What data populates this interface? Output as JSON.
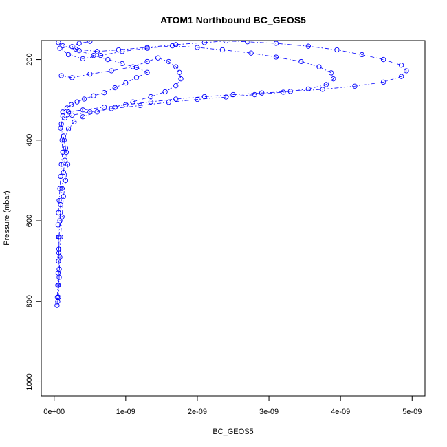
{
  "chart_data": {
    "type": "scatter",
    "title": "ATOM1 Northbound BC_GEOS5",
    "xlabel": "BC_GEOS5",
    "ylabel": "Pressure (mbar)",
    "xlim": [
      -1.8e-10,
      5.18e-09
    ],
    "ylim": [
      1035,
      153
    ],
    "y_reversed": true,
    "x_ticks": [
      0,
      1e-09,
      2e-09,
      3e-09,
      4e-09,
      5e-09
    ],
    "x_tick_labels": [
      "0e+00",
      "1e-09",
      "2e-09",
      "3e-09",
      "4e-09",
      "5e-09"
    ],
    "y_ticks": [
      200,
      400,
      600,
      800,
      1000
    ],
    "y_tick_labels": [
      "200",
      "400",
      "600",
      "800",
      "1000"
    ],
    "marker": "open-circle",
    "line_style": "dash-dot",
    "color": "#0000ff",
    "series": [
      {
        "points": [
          [
            4e-11,
            810
          ],
          [
            4.5e-11,
            790
          ],
          [
            5e-11,
            760
          ],
          [
            5.5e-11,
            730
          ],
          [
            6e-11,
            700
          ],
          [
            6.5e-11,
            670
          ],
          [
            6e-11,
            640
          ],
          [
            5.5e-11,
            610
          ],
          [
            6e-11,
            580
          ],
          [
            7e-11,
            550
          ],
          [
            8e-11,
            520
          ],
          [
            9e-11,
            490
          ],
          [
            1e-10,
            460
          ],
          [
            1.2e-10,
            430
          ],
          [
            1.1e-10,
            400
          ],
          [
            9e-11,
            370
          ],
          [
            1.2e-10,
            340
          ],
          [
            2e-10,
            330
          ],
          [
            4e-10,
            325
          ],
          [
            7e-10,
            318
          ],
          [
            1e-09,
            312
          ],
          [
            1.35e-09,
            305
          ],
          [
            1.7e-09,
            298
          ],
          [
            2.1e-09,
            292
          ],
          [
            2.5e-09,
            287
          ],
          [
            2.9e-09,
            283
          ],
          [
            3.3e-09,
            279
          ],
          [
            3.75e-09,
            274
          ],
          [
            4.2e-09,
            266
          ],
          [
            4.6e-09,
            256
          ],
          [
            4.85e-09,
            242
          ],
          [
            4.92e-09,
            228
          ],
          [
            4.85e-09,
            214
          ],
          [
            4.6e-09,
            200
          ],
          [
            4.3e-09,
            188
          ],
          [
            3.95e-09,
            176
          ],
          [
            3.55e-09,
            167
          ],
          [
            3.1e-09,
            160
          ],
          [
            2.7e-09,
            156
          ],
          [
            2.4e-09,
            154
          ],
          [
            2.1e-09,
            158
          ],
          [
            1.7e-09,
            163
          ],
          [
            1.3e-09,
            170
          ],
          [
            9e-10,
            176
          ],
          [
            6e-10,
            180
          ],
          [
            3e-10,
            174
          ],
          [
            1.2e-10,
            166
          ],
          [
            6e-11,
            158
          ]
        ]
      },
      {
        "points": [
          [
            5e-11,
            800
          ],
          [
            6e-11,
            760
          ],
          [
            7e-11,
            720
          ],
          [
            6.5e-11,
            680
          ],
          [
            7e-11,
            640
          ],
          [
            8e-11,
            600
          ],
          [
            9e-11,
            560
          ],
          [
            1.1e-10,
            520
          ],
          [
            1.3e-10,
            480
          ],
          [
            1.5e-10,
            450
          ],
          [
            1.6e-10,
            420
          ],
          [
            1.3e-10,
            390
          ],
          [
            1e-10,
            360
          ],
          [
            1.5e-10,
            345
          ],
          [
            2.5e-10,
            338
          ],
          [
            5e-10,
            330
          ],
          [
            8e-10,
            322
          ],
          [
            1.2e-09,
            314
          ],
          [
            1.6e-09,
            306
          ],
          [
            2e-09,
            299
          ],
          [
            2.4e-09,
            293
          ],
          [
            2.8e-09,
            287
          ],
          [
            3.2e-09,
            281
          ],
          [
            3.55e-09,
            273
          ],
          [
            3.8e-09,
            262
          ],
          [
            3.9e-09,
            248
          ],
          [
            3.87e-09,
            233
          ],
          [
            3.7e-09,
            218
          ],
          [
            3.45e-09,
            205
          ],
          [
            3.1e-09,
            194
          ],
          [
            2.75e-09,
            184
          ],
          [
            2.35e-09,
            176
          ],
          [
            2e-09,
            170
          ],
          [
            1.65e-09,
            166
          ],
          [
            1.3e-09,
            172
          ],
          [
            9.5e-10,
            180
          ],
          [
            6.5e-10,
            190
          ],
          [
            4e-10,
            198
          ],
          [
            2e-10,
            188
          ],
          [
            8e-11,
            172
          ]
        ]
      },
      {
        "points": [
          [
            6e-11,
            790
          ],
          [
            7e-11,
            740
          ],
          [
            8e-11,
            690
          ],
          [
            9e-11,
            640
          ],
          [
            1.1e-10,
            590
          ],
          [
            1.3e-10,
            540
          ],
          [
            1.6e-10,
            500
          ],
          [
            1.9e-10,
            460
          ],
          [
            1.7e-10,
            430
          ],
          [
            1.4e-10,
            400
          ],
          [
            2e-10,
            372
          ],
          [
            2.8e-10,
            355
          ],
          [
            4e-10,
            342
          ],
          [
            6e-10,
            330
          ],
          [
            8.5e-10,
            318
          ],
          [
            1.1e-09,
            305
          ],
          [
            1.35e-09,
            292
          ],
          [
            1.55e-09,
            280
          ],
          [
            1.7e-09,
            265
          ],
          [
            1.77e-09,
            248
          ],
          [
            1.75e-09,
            232
          ],
          [
            1.7e-09,
            218
          ],
          [
            1.6e-09,
            205
          ],
          [
            1.45e-09,
            196
          ],
          [
            1.3e-09,
            205
          ],
          [
            1.1e-09,
            218
          ],
          [
            8e-10,
            228
          ],
          [
            5e-10,
            236
          ],
          [
            2.5e-10,
            245
          ],
          [
            1e-10,
            240
          ]
        ]
      },
      {
        "points": [
          [
            1.2e-10,
            330
          ],
          [
            1.8e-10,
            320
          ],
          [
            2.4e-10,
            312
          ],
          [
            3.2e-10,
            305
          ],
          [
            4.2e-10,
            298
          ],
          [
            5.5e-10,
            290
          ],
          [
            7e-10,
            282
          ],
          [
            8.5e-10,
            270
          ],
          [
            1e-09,
            258
          ],
          [
            1.15e-09,
            245
          ],
          [
            1.3e-09,
            232
          ],
          [
            1.15e-09,
            220
          ],
          [
            9.5e-10,
            210
          ],
          [
            7.5e-10,
            200
          ],
          [
            5.5e-10,
            190
          ],
          [
            3.5e-10,
            178
          ],
          [
            2.5e-10,
            168
          ],
          [
            3.5e-10,
            160
          ],
          [
            5e-10,
            155
          ]
        ]
      }
    ]
  }
}
